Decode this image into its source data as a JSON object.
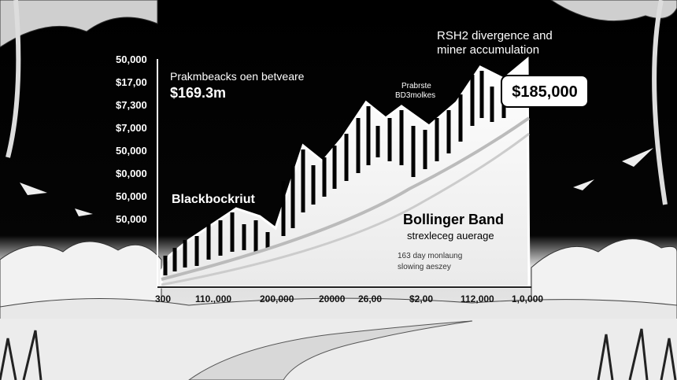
{
  "header": {
    "line1": "RSH2 divergence and",
    "line2": "miner accumulation"
  },
  "y_labels": [
    "50,000",
    "$17,00",
    "$7,300",
    "$7,000",
    "50,000",
    "$0,000",
    "50,000",
    "50,000"
  ],
  "callout_top_left": {
    "caption": "Prakmbeacks oen betveare",
    "value": "$169.3m"
  },
  "callout_mid": {
    "line1": "Prabrste",
    "line2": "BD3molkes"
  },
  "price_badge": "$185,000",
  "left_label": "Blackbockriut",
  "legend": {
    "title": "Bollinger Band",
    "subtitle": "strexleceg auerage"
  },
  "note": {
    "line1": "163 day monlaung",
    "line2": "slowing aeszey"
  },
  "x_labels": [
    "300",
    "110.,000",
    "200,000",
    "20000",
    "26,00",
    "$2,00",
    "112,000",
    "1,0,000"
  ]
}
